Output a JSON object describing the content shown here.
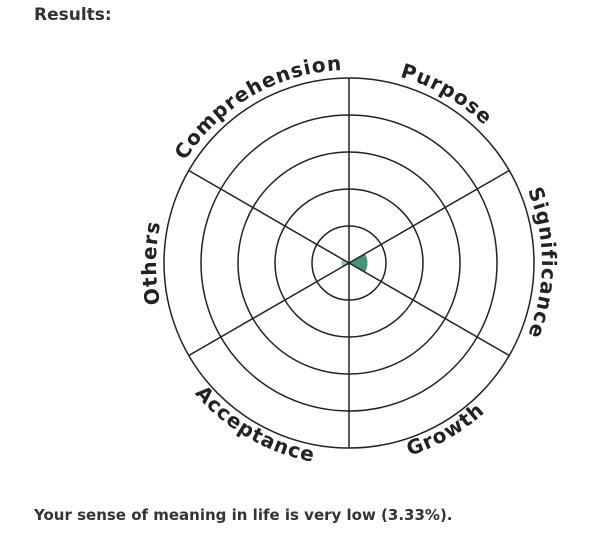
{
  "heading": "Results:",
  "chart_data": {
    "type": "polar-area",
    "categories": [
      "Purpose",
      "Significance",
      "Growth",
      "Acceptance",
      "Others",
      "Comprehension"
    ],
    "values": [
      0,
      0.5,
      0,
      0,
      0.2,
      0
    ],
    "colors": [
      "#2e8b6e",
      "#2e8b6e",
      "#2e8b6e",
      "#7fbf8a",
      "#7fbf8a",
      "#2e8b6e"
    ],
    "rlim": [
      0,
      5
    ],
    "rticks": [
      1,
      2,
      3,
      4,
      5
    ],
    "grid": true
  },
  "summary": "Your sense of meaning in life is very low (3.33%)."
}
